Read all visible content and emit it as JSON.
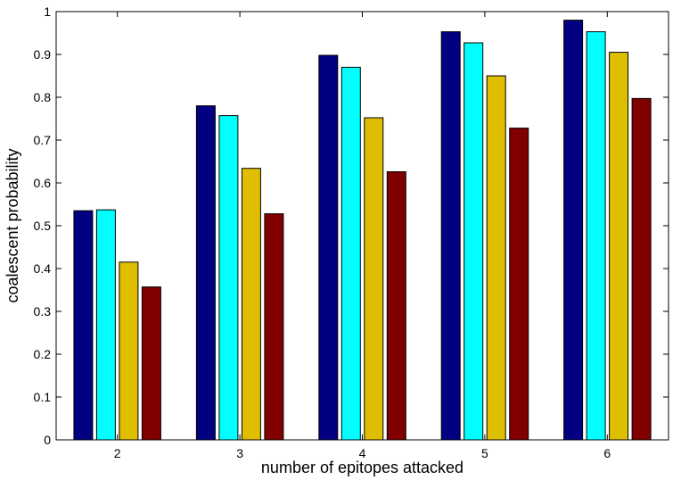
{
  "chart_data": {
    "type": "bar",
    "title": "",
    "xlabel": "number of epitopes attacked",
    "ylabel": "coalescent probability",
    "categories": [
      "2",
      "3",
      "4",
      "5",
      "6"
    ],
    "ylim": [
      0,
      1
    ],
    "yticks": [
      "0",
      "0.1",
      "0.2",
      "0.3",
      "0.4",
      "0.5",
      "0.6",
      "0.7",
      "0.8",
      "0.9",
      "1"
    ],
    "grid": false,
    "series": [
      {
        "color": "#000080",
        "values": [
          0.535,
          0.78,
          0.898,
          0.953,
          0.98
        ]
      },
      {
        "color": "#00ffff",
        "values": [
          0.537,
          0.757,
          0.87,
          0.927,
          0.953
        ]
      },
      {
        "color": "#dfbe00",
        "values": [
          0.415,
          0.634,
          0.752,
          0.85,
          0.905
        ]
      },
      {
        "color": "#800000",
        "values": [
          0.357,
          0.528,
          0.626,
          0.728,
          0.797
        ]
      }
    ]
  }
}
